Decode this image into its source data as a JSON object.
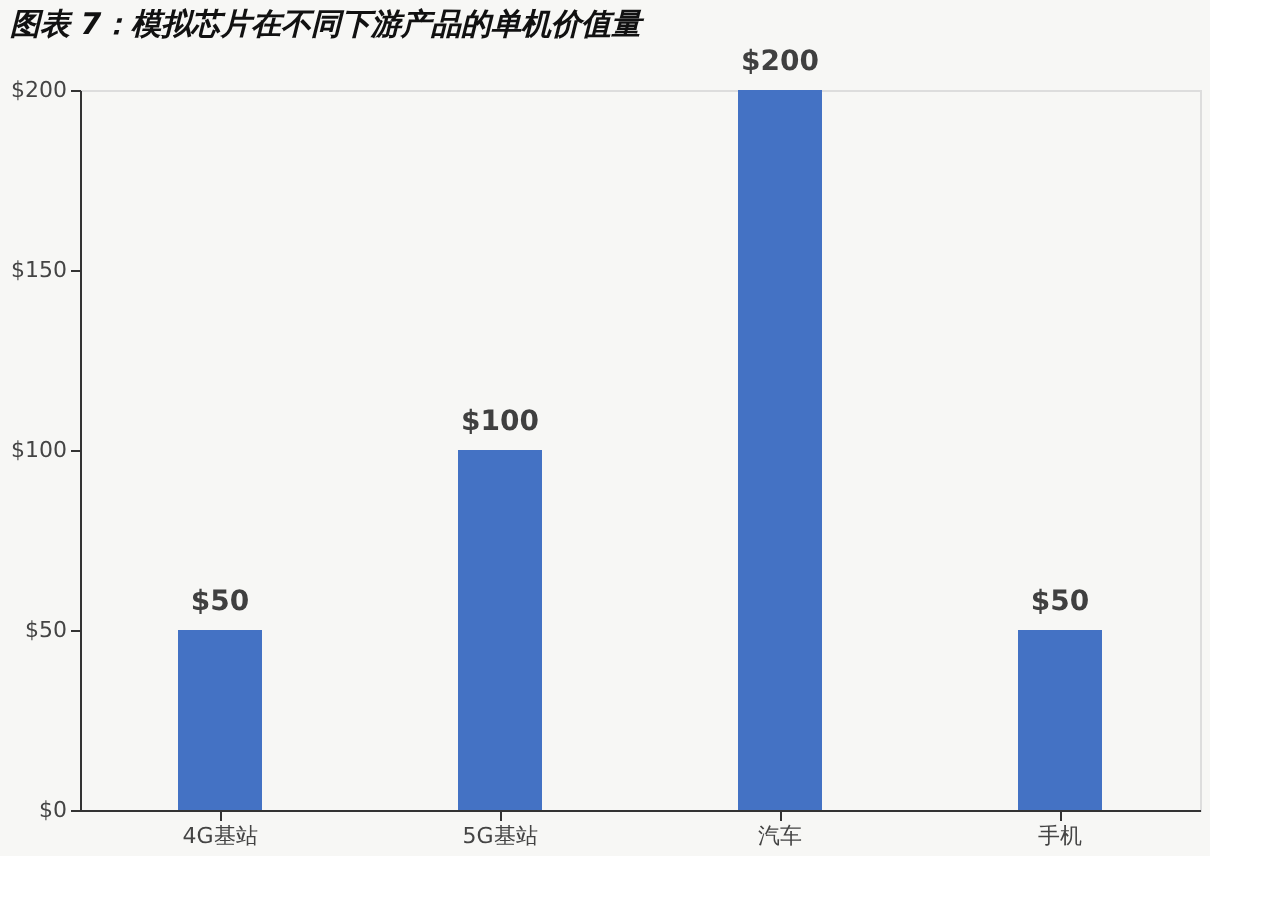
{
  "chart_data": {
    "type": "bar",
    "title": "图表 7：模拟芯片在不同下游产品的单机价值量",
    "categories": [
      "4G基站",
      "5G基站",
      "汽车",
      "手机"
    ],
    "values": [
      50,
      100,
      200,
      50
    ],
    "color": "#4472c4",
    "value_labels": [
      "$50",
      "$100",
      "$200",
      "$50"
    ],
    "ylim": [
      0,
      200
    ],
    "yticks": [
      {
        "value": 0,
        "label": "$0"
      },
      {
        "value": 50,
        "label": "$50"
      },
      {
        "value": 100,
        "label": "$100"
      },
      {
        "value": 150,
        "label": "$150"
      },
      {
        "value": 200,
        "label": "$200"
      }
    ],
    "grid": false
  }
}
